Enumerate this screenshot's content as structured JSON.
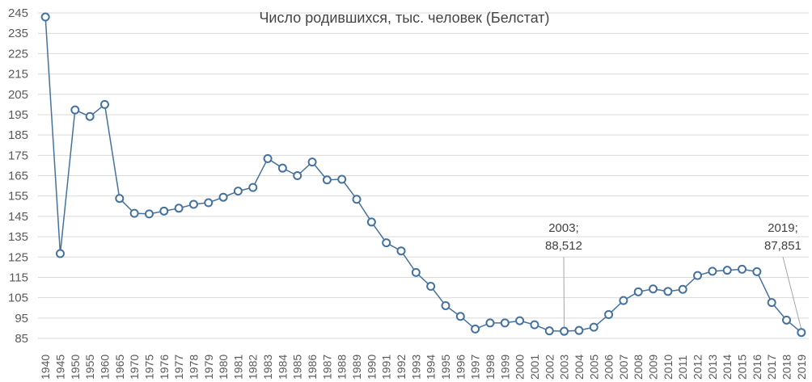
{
  "chart_data": {
    "type": "line",
    "title": "Число родившихся, тыс. человек (Белстат)",
    "ylim": [
      85,
      245
    ],
    "yticks": [
      85,
      95,
      105,
      115,
      125,
      135,
      145,
      155,
      165,
      175,
      185,
      195,
      205,
      215,
      225,
      235,
      245
    ],
    "grid": true,
    "legend": "none",
    "colors": {
      "line": "#44729e",
      "marker_fill": "#ffffff",
      "grid": "#d9d9d9",
      "annotation_line": "#a5a5a5"
    },
    "categories": [
      "1940",
      "1945",
      "1950",
      "1955",
      "1960",
      "1965",
      "1970",
      "1975",
      "1976",
      "1977",
      "1978",
      "1979",
      "1980",
      "1981",
      "1982",
      "1983",
      "1984",
      "1985",
      "1986",
      "1987",
      "1988",
      "1989",
      "1990",
      "1991",
      "1992",
      "1993",
      "1994",
      "1995",
      "1996",
      "1997",
      "1998",
      "1999",
      "2000",
      "2001",
      "2002",
      "2003",
      "2004",
      "2005",
      "2006",
      "2007",
      "2008",
      "2009",
      "2010",
      "2011",
      "2012",
      "2013",
      "2014",
      "2015",
      "2016",
      "2017",
      "2018",
      "2019"
    ],
    "series": [
      {
        "values": [
          243.0,
          126.7,
          197.3,
          194.1,
          200.0,
          153.8,
          146.5,
          146.2,
          147.6,
          149.0,
          150.9,
          151.7,
          154.4,
          157.4,
          159.2,
          173.4,
          168.7,
          165.0,
          171.7,
          162.9,
          163.2,
          153.4,
          142.2,
          132.0,
          128.0,
          117.4,
          110.6,
          101.1,
          95.8,
          89.6,
          92.6,
          92.6,
          93.7,
          91.7,
          88.7,
          88.5,
          88.9,
          90.5,
          96.7,
          103.6,
          107.9,
          109.3,
          108.1,
          109.1,
          115.9,
          118.0,
          118.5,
          119.0,
          117.8,
          102.6,
          94.0,
          87.9
        ]
      }
    ],
    "annotations": [
      {
        "category": "2003",
        "value": 88.512,
        "line1": "2003;",
        "line2": "88,512"
      },
      {
        "category": "2019",
        "value": 87.851,
        "line1": "2019;",
        "line2": "87,851"
      }
    ]
  }
}
